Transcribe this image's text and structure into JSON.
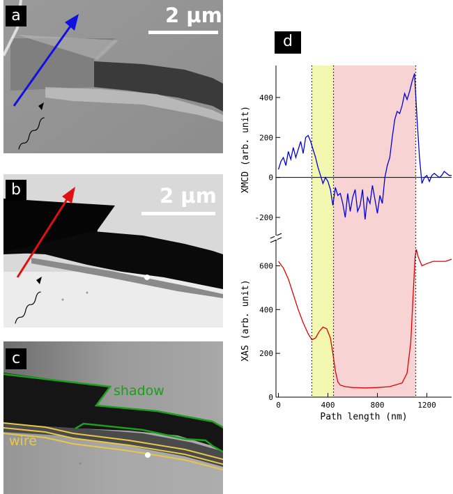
{
  "panels": {
    "a": {
      "label": "a",
      "scale": "2 µm"
    },
    "b": {
      "label": "b",
      "scale": "2 µm"
    },
    "c": {
      "label": "c",
      "shadow_label": "shadow",
      "wire_label": "wire"
    },
    "d": {
      "label": "d"
    }
  },
  "colors": {
    "xmcd_line": "#0000dd",
    "xas_line": "#e00000",
    "yellow_band": "#f4f7b0",
    "pink_band": "#f8d3d3",
    "shadow_outline": "#1aa01a",
    "wire_outline": "#e8c84a",
    "arrow_a": "#1010e0",
    "arrow_b": "#e01010"
  },
  "chart_data": {
    "type": "line",
    "xlabel": "Path length (nm)",
    "xlim": [
      -20,
      1400
    ],
    "xticks": [
      0,
      400,
      800,
      1200
    ],
    "xticklabels": [
      "0",
      "400",
      "800",
      "1200"
    ],
    "bands": [
      {
        "name": "yellow",
        "from": 270,
        "to": 445
      },
      {
        "name": "pink",
        "from": 445,
        "to": 1110
      }
    ],
    "dotted_lines": [
      270,
      445,
      1110
    ],
    "panels": [
      {
        "name": "XMCD",
        "ylabel": "XMCD (arb. unit)",
        "ylim": [
          -280,
          560
        ],
        "yticks": [
          -200,
          0,
          200,
          400
        ],
        "yticklabels": [
          "-200",
          "0",
          "200",
          "400"
        ],
        "zero_line": true,
        "series": [
          {
            "color": "#0000dd",
            "x": [
              0,
              20,
              40,
              60,
              80,
              100,
              120,
              140,
              160,
              180,
              200,
              220,
              240,
              260,
              280,
              300,
              320,
              340,
              360,
              380,
              400,
              420,
              440,
              460,
              480,
              500,
              520,
              540,
              560,
              580,
              600,
              620,
              640,
              660,
              680,
              700,
              720,
              740,
              760,
              780,
              800,
              820,
              840,
              860,
              880,
              900,
              920,
              940,
              960,
              980,
              1000,
              1020,
              1040,
              1060,
              1080,
              1100,
              1120,
              1140,
              1160,
              1180,
              1200,
              1220,
              1240,
              1260,
              1280,
              1300,
              1320,
              1340,
              1360,
              1380,
              1400
            ],
            "y": [
              40,
              80,
              100,
              60,
              130,
              90,
              150,
              100,
              140,
              180,
              120,
              200,
              210,
              180,
              140,
              100,
              50,
              10,
              -30,
              0,
              -20,
              -60,
              -140,
              -50,
              -90,
              -80,
              -130,
              -200,
              -80,
              -170,
              -100,
              -60,
              -170,
              -140,
              -60,
              -210,
              -100,
              -130,
              -40,
              -110,
              -180,
              -90,
              -130,
              0,
              60,
              100,
              200,
              290,
              330,
              320,
              360,
              420,
              390,
              430,
              480,
              520,
              300,
              100,
              -30,
              0,
              10,
              -20,
              10,
              20,
              10,
              0,
              10,
              30,
              20,
              10,
              10
            ]
          }
        ]
      },
      {
        "name": "XAS",
        "ylabel": "XAS (arb. unit)",
        "ylim": [
          0,
          700
        ],
        "yticks": [
          0,
          200,
          400,
          600
        ],
        "yticklabels": [
          "0",
          "200",
          "400",
          "600"
        ],
        "series": [
          {
            "color": "#e00000",
            "x": [
              0,
              40,
              80,
              120,
              160,
              200,
              240,
              270,
              300,
              330,
              360,
              390,
              420,
              440,
              460,
              480,
              500,
              540,
              600,
              700,
              800,
              900,
              1000,
              1040,
              1070,
              1090,
              1105,
              1115,
              1130,
              1160,
              1200,
              1250,
              1300,
              1350,
              1400
            ],
            "y": [
              620,
              590,
              540,
              470,
              400,
              340,
              290,
              262,
              270,
              300,
              320,
              312,
              270,
              200,
              120,
              70,
              55,
              48,
              44,
              42,
              44,
              48,
              65,
              110,
              250,
              480,
              640,
              675,
              640,
              600,
              610,
              620,
              620,
              620,
              630
            ]
          }
        ]
      }
    ]
  }
}
